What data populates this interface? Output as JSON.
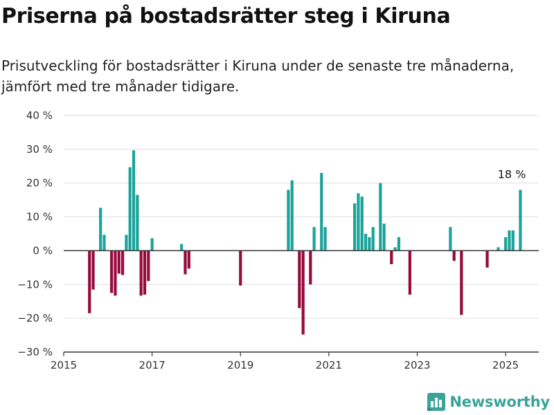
{
  "header": {
    "title": "Priserna på bostadsrätter steg i Kiruna",
    "subtitle": "Prisutveckling för bostadsrätter i Kiruna under de senaste tre månaderna, jämfört med tre månader tidigare."
  },
  "brand": {
    "name": "Newsworthy",
    "icon": "bar-chart-logo-icon"
  },
  "colors": {
    "positive": "#1aa39a",
    "negative": "#960a3c",
    "grid": "#dddddd",
    "axis": "#333333"
  },
  "chart_data": {
    "type": "bar",
    "x_axis": {
      "type": "date",
      "min": "2015-01",
      "max": "2025-10",
      "ticks": [
        "2015",
        "2017",
        "2019",
        "2021",
        "2023",
        "2025"
      ]
    },
    "y_axis": {
      "min": -30,
      "max": 40,
      "step": 10,
      "unit": "%",
      "ticks": [
        "−30 %",
        "−20 %",
        "−10 %",
        "0 %",
        "10 %",
        "20 %",
        "30 %",
        "40 %"
      ]
    },
    "grid": true,
    "annotation": {
      "x": "2025-04",
      "value": 18,
      "label": "18 %"
    },
    "values": [
      {
        "x": "2015-08",
        "y": -18.5
      },
      {
        "x": "2015-09",
        "y": -11.5
      },
      {
        "x": "2015-11",
        "y": 12.7
      },
      {
        "x": "2015-12",
        "y": 4.7
      },
      {
        "x": "2016-02",
        "y": -12.5
      },
      {
        "x": "2016-03",
        "y": -13.3
      },
      {
        "x": "2016-04",
        "y": -6.8
      },
      {
        "x": "2016-05",
        "y": -7.2
      },
      {
        "x": "2016-06",
        "y": 4.7
      },
      {
        "x": "2016-07",
        "y": 24.7
      },
      {
        "x": "2016-08",
        "y": 29.7
      },
      {
        "x": "2016-09",
        "y": 16.5
      },
      {
        "x": "2016-10",
        "y": -13.3
      },
      {
        "x": "2016-11",
        "y": -13.0
      },
      {
        "x": "2016-12",
        "y": -9.0
      },
      {
        "x": "2017-01",
        "y": 3.7
      },
      {
        "x": "2017-09",
        "y": 2.0
      },
      {
        "x": "2017-10",
        "y": -7.0
      },
      {
        "x": "2017-11",
        "y": -5.3
      },
      {
        "x": "2019-01",
        "y": -10.3
      },
      {
        "x": "2020-02",
        "y": 18.0
      },
      {
        "x": "2020-03",
        "y": 20.8
      },
      {
        "x": "2020-05",
        "y": -17.0
      },
      {
        "x": "2020-06",
        "y": -24.8
      },
      {
        "x": "2020-08",
        "y": -10.0
      },
      {
        "x": "2020-09",
        "y": 7.0
      },
      {
        "x": "2020-11",
        "y": 23.0
      },
      {
        "x": "2020-12",
        "y": 7.0
      },
      {
        "x": "2021-08",
        "y": 14.0
      },
      {
        "x": "2021-09",
        "y": 17.0
      },
      {
        "x": "2021-10",
        "y": 16.0
      },
      {
        "x": "2021-11",
        "y": 5.0
      },
      {
        "x": "2021-12",
        "y": 4.0
      },
      {
        "x": "2022-01",
        "y": 7.0
      },
      {
        "x": "2022-03",
        "y": 20.0
      },
      {
        "x": "2022-04",
        "y": 8.0
      },
      {
        "x": "2022-06",
        "y": -4.0
      },
      {
        "x": "2022-07",
        "y": 1.0
      },
      {
        "x": "2022-08",
        "y": 4.0
      },
      {
        "x": "2022-11",
        "y": -13.0
      },
      {
        "x": "2023-10",
        "y": 7.0
      },
      {
        "x": "2023-11",
        "y": -3.0
      },
      {
        "x": "2024-01",
        "y": -19.0
      },
      {
        "x": "2024-08",
        "y": -5.0
      },
      {
        "x": "2024-11",
        "y": 1.0
      },
      {
        "x": "2025-01",
        "y": 4.0
      },
      {
        "x": "2025-02",
        "y": 6.0
      },
      {
        "x": "2025-03",
        "y": 6.0
      },
      {
        "x": "2025-05",
        "y": 18.0
      }
    ]
  }
}
